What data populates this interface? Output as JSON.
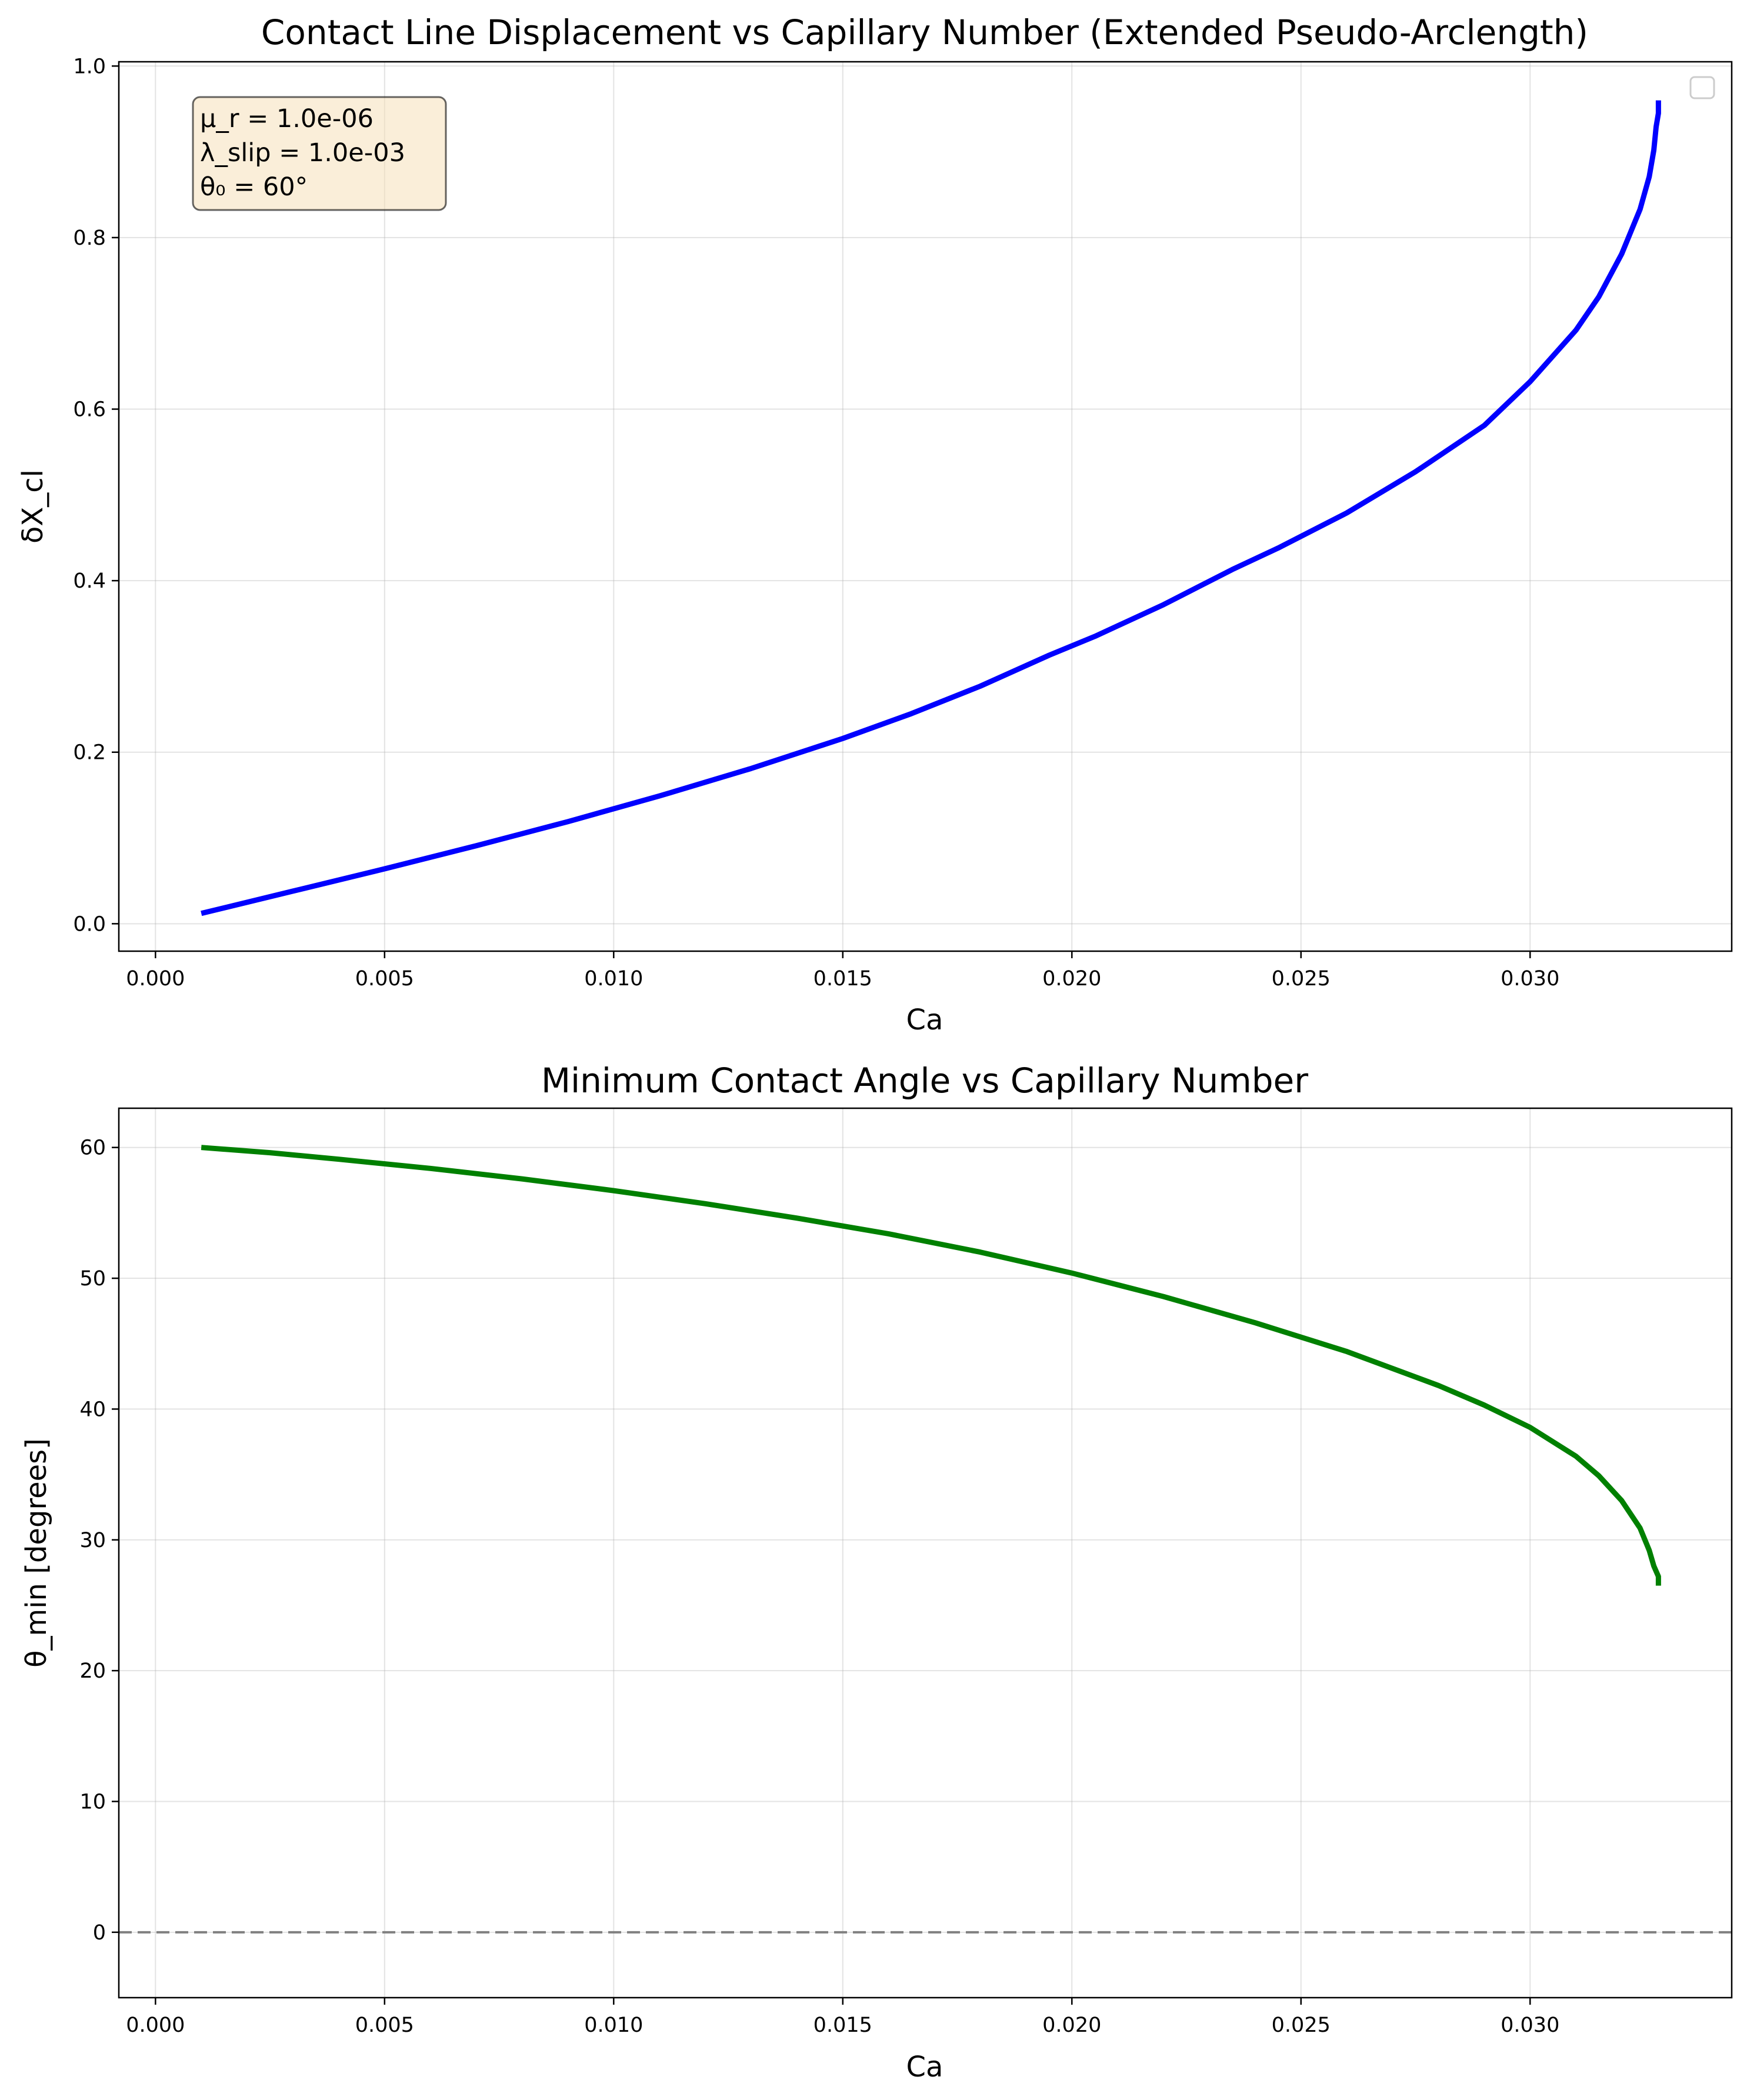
{
  "chart_data": [
    {
      "type": "line",
      "title": "Contact Line Displacement vs Capillary Number (Extended Pseudo-Arclength)",
      "xlabel": "Ca",
      "ylabel": "δX_cl",
      "xlim": [
        -0.0008,
        0.0344
      ],
      "ylim": [
        -0.032,
        1.005
      ],
      "xticks": [
        0.0,
        0.005,
        0.01,
        0.015,
        0.02,
        0.025,
        0.03
      ],
      "xtick_labels": [
        "0.000",
        "0.005",
        "0.010",
        "0.015",
        "0.020",
        "0.025",
        "0.030"
      ],
      "yticks": [
        0.0,
        0.2,
        0.4,
        0.6,
        0.8,
        1.0
      ],
      "ytick_labels": [
        "0.0",
        "0.2",
        "0.4",
        "0.6",
        "0.8",
        "1.0"
      ],
      "grid": true,
      "legend": "top-right (empty)",
      "annotation": [
        "μ_r = 1.0e-06",
        "λ_slip = 1.0e-03",
        "θ₀ = 60°"
      ],
      "annotation_box_color": "#f5deb3",
      "series": [
        {
          "color": "#0000ff",
          "x": [
            0.001,
            0.003,
            0.005,
            0.007,
            0.009,
            0.011,
            0.013,
            0.015,
            0.0165,
            0.018,
            0.0195,
            0.0205,
            0.022,
            0.0235,
            0.0245,
            0.026,
            0.0275,
            0.029,
            0.03,
            0.031,
            0.0315,
            0.032,
            0.0324,
            0.0326,
            0.0327,
            0.03275,
            0.0328,
            0.0328
          ],
          "y": [
            0.012,
            0.038,
            0.064,
            0.091,
            0.119,
            0.149,
            0.181,
            0.216,
            0.245,
            0.277,
            0.313,
            0.335,
            0.372,
            0.413,
            0.438,
            0.479,
            0.527,
            0.581,
            0.632,
            0.692,
            0.731,
            0.781,
            0.833,
            0.871,
            0.902,
            0.929,
            0.945,
            0.96
          ]
        }
      ]
    },
    {
      "type": "line",
      "title": "Minimum Contact Angle vs Capillary Number",
      "xlabel": "Ca",
      "ylabel": "θ_min [degrees]",
      "xlim": [
        -0.0008,
        0.0344
      ],
      "ylim": [
        -5,
        63
      ],
      "xticks": [
        0.0,
        0.005,
        0.01,
        0.015,
        0.02,
        0.025,
        0.03
      ],
      "xtick_labels": [
        "0.000",
        "0.005",
        "0.010",
        "0.015",
        "0.020",
        "0.025",
        "0.030"
      ],
      "yticks": [
        0,
        10,
        20,
        30,
        40,
        50,
        60
      ],
      "ytick_labels": [
        "0",
        "10",
        "20",
        "30",
        "40",
        "50",
        "60"
      ],
      "grid": true,
      "reference_line": {
        "y": 0,
        "style": "dashed",
        "color": "#808080"
      },
      "series": [
        {
          "color": "#008000",
          "x": [
            0.001,
            0.0025,
            0.004,
            0.006,
            0.008,
            0.01,
            0.012,
            0.014,
            0.016,
            0.018,
            0.02,
            0.022,
            0.024,
            0.026,
            0.028,
            0.029,
            0.03,
            0.031,
            0.0315,
            0.032,
            0.0324,
            0.0326,
            0.0327,
            0.0328,
            0.0328
          ],
          "y": [
            60.0,
            59.6,
            59.1,
            58.4,
            57.6,
            56.7,
            55.7,
            54.6,
            53.4,
            52.0,
            50.4,
            48.6,
            46.6,
            44.4,
            41.8,
            40.3,
            38.6,
            36.4,
            34.9,
            33.0,
            30.9,
            29.2,
            28.0,
            27.2,
            26.5
          ]
        }
      ]
    }
  ]
}
